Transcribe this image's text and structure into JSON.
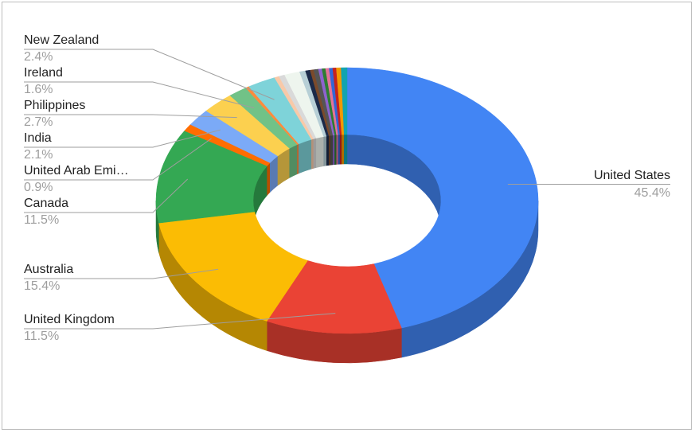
{
  "chart_data": {
    "type": "pie",
    "donut": true,
    "three_d": true,
    "categories": [
      "United States",
      "United Kingdom",
      "Australia",
      "Canada",
      "United Arab Emi…",
      "India",
      "Philippines",
      "Ireland",
      null,
      "New Zealand",
      null,
      null,
      null,
      null,
      null,
      null,
      null,
      null,
      null,
      null,
      null,
      null,
      null,
      null
    ],
    "values": [
      45.4,
      11.5,
      15.4,
      11.5,
      0.9,
      2.1,
      2.7,
      1.6,
      0.3,
      2.4,
      0.4,
      0.5,
      1.3,
      0.5,
      0.4,
      0.3,
      0.4,
      0.3,
      0.3,
      0.3,
      0.3,
      0.3,
      0.4,
      0.5
    ],
    "value_labels": [
      "45.4%",
      "11.5%",
      "15.4%",
      "11.5%",
      "0.9%",
      "2.1%",
      "2.7%",
      "1.6%",
      null,
      "2.4%",
      null,
      null,
      null,
      null,
      null,
      null,
      null,
      null,
      null,
      null,
      null,
      null,
      null,
      null
    ],
    "colors": [
      "#4285f4",
      "#ea4335",
      "#fbbc04",
      "#34a853",
      "#ff6d01",
      "#7baaf7",
      "#fcd04f",
      "#71c287",
      "#ff8a3d",
      "#7ed3d9",
      "#f8c9a8",
      "#d9d9d9",
      "#eef5ee",
      "#b7cfd6",
      "#1b2a49",
      "#7b4a2b",
      "#555555",
      "#8e63ce",
      "#2e7d32",
      "#e57399",
      "#3367d6",
      "#c5221f",
      "#f29900",
      "#12a4af"
    ]
  }
}
